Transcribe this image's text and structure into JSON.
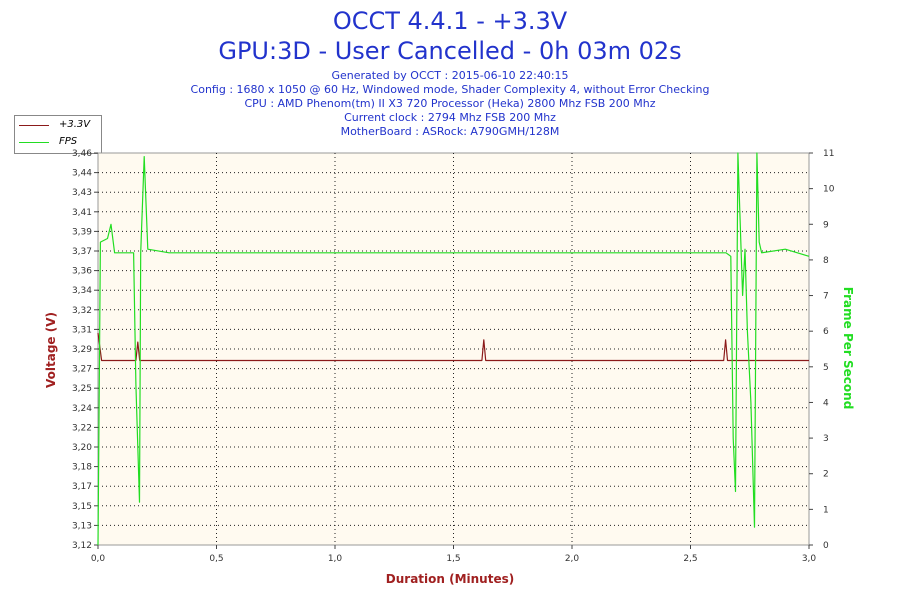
{
  "header": {
    "title_line1": "OCCT 4.4.1 - +3.3V",
    "title_line2": "GPU:3D - User Cancelled - 0h 03m 02s",
    "info_lines": [
      "Generated by OCCT : 2015-06-10 22:40:15",
      "Config : 1680 x 1050 @ 60 Hz, Windowed mode, Shader Complexity 4, without Error Checking",
      "CPU : AMD Phenom(tm) II X3 720 Processor (Heka) 2800 Mhz FSB 200 Mhz",
      "Current clock : 2794 Mhz FSB 200 Mhz",
      "MotherBoard : ASRock: A790GMH/128M"
    ]
  },
  "colors": {
    "plot_bg": "#fffaf0",
    "voltage": "#8b1a1a",
    "fps": "#22dd22",
    "grid": "#222222"
  },
  "chart_data": {
    "type": "line",
    "xlabel": "Duration (Minutes)",
    "ylabel": "Voltage (V)",
    "y2label": "Frame Per Second",
    "xlim": [
      0.0,
      3.0
    ],
    "ylim": [
      3.12,
      3.46
    ],
    "y2lim": [
      0,
      11
    ],
    "x_ticks": [
      "0,0",
      "0,5",
      "1,0",
      "1,5",
      "2,0",
      "2,5",
      "3,0"
    ],
    "y_ticks": [
      "3,12",
      "3,13",
      "3,15",
      "3,17",
      "3,18",
      "3,20",
      "3,22",
      "3,24",
      "3,25",
      "3,27",
      "3,29",
      "3,31",
      "3,32",
      "3,34",
      "3,36",
      "3,37",
      "3,39",
      "3,41",
      "3,43",
      "3,44",
      "3,46"
    ],
    "y2_ticks": [
      "0",
      "1",
      "2",
      "3",
      "4",
      "5",
      "6",
      "7",
      "8",
      "9",
      "10",
      "11"
    ],
    "grid": true,
    "legend": "top-left",
    "series": [
      {
        "name": "+3.3V",
        "axis": "left",
        "points": [
          [
            0.0,
            3.304
          ],
          [
            0.015,
            3.28
          ],
          [
            0.16,
            3.28
          ],
          [
            0.168,
            3.296
          ],
          [
            0.176,
            3.28
          ],
          [
            1.62,
            3.28
          ],
          [
            1.628,
            3.298
          ],
          [
            1.636,
            3.28
          ],
          [
            2.64,
            3.28
          ],
          [
            2.648,
            3.298
          ],
          [
            2.656,
            3.28
          ],
          [
            3.0,
            3.28
          ]
        ]
      },
      {
        "name": "FPS",
        "axis": "right",
        "points": [
          [
            0.0,
            0
          ],
          [
            0.01,
            8.5
          ],
          [
            0.04,
            8.6
          ],
          [
            0.055,
            9
          ],
          [
            0.07,
            8.2
          ],
          [
            0.15,
            8.2
          ],
          [
            0.16,
            4.5
          ],
          [
            0.175,
            1.2
          ],
          [
            0.18,
            8.2
          ],
          [
            0.195,
            10.9
          ],
          [
            0.21,
            8.3
          ],
          [
            0.3,
            8.2
          ],
          [
            0.5,
            8.2
          ],
          [
            1.0,
            8.2
          ],
          [
            1.5,
            8.2
          ],
          [
            2.0,
            8.2
          ],
          [
            2.5,
            8.2
          ],
          [
            2.65,
            8.2
          ],
          [
            2.67,
            8.1
          ],
          [
            2.68,
            3
          ],
          [
            2.69,
            1.5
          ],
          [
            2.7,
            11
          ],
          [
            2.72,
            7
          ],
          [
            2.73,
            8.3
          ],
          [
            2.74,
            6
          ],
          [
            2.755,
            4
          ],
          [
            2.77,
            0.5
          ],
          [
            2.78,
            11
          ],
          [
            2.79,
            8.5
          ],
          [
            2.8,
            8.2
          ],
          [
            2.9,
            8.3
          ],
          [
            3.0,
            8.1
          ]
        ]
      }
    ]
  }
}
